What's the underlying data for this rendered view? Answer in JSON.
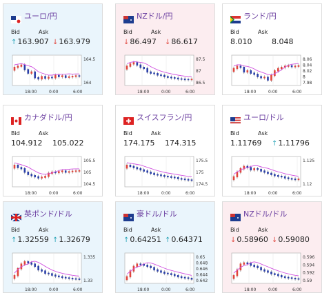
{
  "labels": {
    "bid": "Bid",
    "ask": "Ask"
  },
  "colors": {
    "up": "#2aa5b8",
    "down": "#e0453c",
    "title": "#6b3fa0",
    "ma": "#d050e0",
    "candle_up": "#e0453c",
    "candle_down": "#2a3fa8"
  },
  "cards": [
    {
      "title": "ユーロ/円",
      "tint": "blue",
      "flag": "eu-flag",
      "bid": "163.907",
      "bid_dir": "up",
      "ask": "163.979",
      "ask_dir": "down",
      "axis": {
        "ticks": [
          "164.5",
          "164"
        ],
        "x": [
          "18:00",
          "0:00",
          "6:00"
        ]
      },
      "series": [
        0.35,
        0.3,
        0.25,
        0.45,
        0.6,
        0.55,
        0.8,
        0.85,
        0.75,
        0.82,
        0.78,
        0.8,
        0.7,
        0.75,
        0.72,
        0.78,
        0.76,
        0.74,
        0.72,
        0.73
      ]
    },
    {
      "title": "NZドル/円",
      "tint": "pink",
      "flag": "nz-flag",
      "bid": "86.497",
      "bid_dir": "down",
      "ask": "86.617",
      "ask_dir": "down",
      "axis": {
        "ticks": [
          "87.5",
          "87",
          "86.5"
        ],
        "x": [
          "18:00",
          "0:00",
          "6:00"
        ]
      },
      "series": [
        0.3,
        0.2,
        0.15,
        0.25,
        0.35,
        0.4,
        0.55,
        0.6,
        0.62,
        0.68,
        0.7,
        0.75,
        0.78,
        0.8,
        0.82,
        0.85,
        0.86,
        0.88,
        0.88,
        0.87
      ]
    },
    {
      "title": "ランド/円",
      "tint": "white",
      "flag": "za-flag",
      "bid": "8.010",
      "bid_dir": "",
      "ask": "8.048",
      "ask_dir": "",
      "axis": {
        "ticks": [
          "8.06",
          "8.04",
          "8.02",
          "8",
          "7.98"
        ],
        "x": [
          "18:00",
          "0:00",
          "6:00"
        ]
      },
      "series": [
        0.4,
        0.3,
        0.35,
        0.55,
        0.5,
        0.6,
        0.65,
        0.75,
        0.8,
        0.78,
        0.9,
        0.7,
        0.5,
        0.4,
        0.35,
        0.3,
        0.28,
        0.32,
        0.3,
        0.28
      ]
    },
    {
      "title": "カナダドル/円",
      "tint": "white",
      "flag": "ca-flag",
      "bid": "104.912",
      "bid_dir": "",
      "ask": "105.022",
      "ask_dir": "",
      "axis": {
        "ticks": [
          "105.5",
          "105",
          "104.5"
        ],
        "x": [
          "18:00",
          "0:00",
          "6:00"
        ]
      },
      "series": [
        0.2,
        0.3,
        0.35,
        0.5,
        0.6,
        0.65,
        0.7,
        0.75,
        0.72,
        0.68,
        0.55,
        0.5,
        0.52,
        0.48,
        0.45,
        0.5,
        0.48,
        0.46,
        0.45,
        0.44
      ]
    },
    {
      "title": "スイスフラン/円",
      "tint": "white",
      "flag": "ch-flag",
      "bid": "174.175",
      "bid_dir": "",
      "ask": "174.315",
      "ask_dir": "",
      "axis": {
        "ticks": [
          "175.5",
          "175",
          "174.5"
        ],
        "x": [
          "18:00",
          "0:00",
          "6:00"
        ]
      },
      "series": [
        0.2,
        0.25,
        0.3,
        0.35,
        0.4,
        0.45,
        0.5,
        0.55,
        0.6,
        0.62,
        0.65,
        0.68,
        0.7,
        0.72,
        0.74,
        0.78,
        0.8,
        0.82,
        0.84,
        0.85
      ]
    },
    {
      "title": "ユーロ/ドル",
      "tint": "white",
      "flag": "us-flag",
      "bid": "1.11769",
      "bid_dir": "",
      "ask": "1.11796",
      "ask_dir": "up",
      "axis": {
        "ticks": [
          "1.125",
          "1.12"
        ],
        "x": [
          "18:00",
          "0:00",
          "6:00"
        ]
      },
      "series": [
        0.7,
        0.5,
        0.35,
        0.25,
        0.3,
        0.4,
        0.35,
        0.38,
        0.45,
        0.5,
        0.55,
        0.6,
        0.65,
        0.68,
        0.7,
        0.75,
        0.78,
        0.8,
        0.82,
        0.8
      ]
    },
    {
      "title": "英ポンド/ドル",
      "tint": "blue",
      "flag": "gb-flag",
      "bid": "1.32559",
      "bid_dir": "up",
      "ask": "1.32679",
      "ask_dir": "up",
      "axis": {
        "ticks": [
          "1.335",
          "1.33"
        ],
        "x": [
          "18:00",
          "0:00",
          "6:00"
        ]
      },
      "series": [
        0.8,
        0.5,
        0.3,
        0.2,
        0.25,
        0.3,
        0.4,
        0.55,
        0.6,
        0.7,
        0.72,
        0.78,
        0.82,
        0.85,
        0.88,
        0.9,
        0.92,
        0.94,
        0.95,
        0.96
      ]
    },
    {
      "title": "豪ドル/ドル",
      "tint": "blue",
      "flag": "au-flag",
      "bid": "0.64251",
      "bid_dir": "up",
      "ask": "0.64371",
      "ask_dir": "up",
      "axis": {
        "ticks": [
          "0.65",
          "0.648",
          "0.646",
          "0.644",
          "0.642"
        ],
        "x": [
          "18:00",
          "0:00",
          "6:00"
        ]
      },
      "series": [
        0.85,
        0.6,
        0.4,
        0.3,
        0.32,
        0.35,
        0.4,
        0.45,
        0.55,
        0.6,
        0.65,
        0.7,
        0.72,
        0.75,
        0.8,
        0.85,
        0.88,
        0.9,
        0.92,
        0.95
      ]
    },
    {
      "title": "NZドル/ドル",
      "tint": "pink",
      "flag": "nz-flag",
      "bid": "0.58960",
      "bid_dir": "down",
      "ask": "0.59080",
      "ask_dir": "down",
      "axis": {
        "ticks": [
          "0.596",
          "0.594",
          "0.592",
          "0.59"
        ],
        "x": [
          "18:00",
          "0:00",
          "6:00"
        ]
      },
      "series": [
        0.8,
        0.55,
        0.3,
        0.25,
        0.28,
        0.35,
        0.4,
        0.45,
        0.55,
        0.6,
        0.65,
        0.72,
        0.75,
        0.8,
        0.85,
        0.88,
        0.9,
        0.92,
        0.94,
        0.95
      ]
    }
  ]
}
